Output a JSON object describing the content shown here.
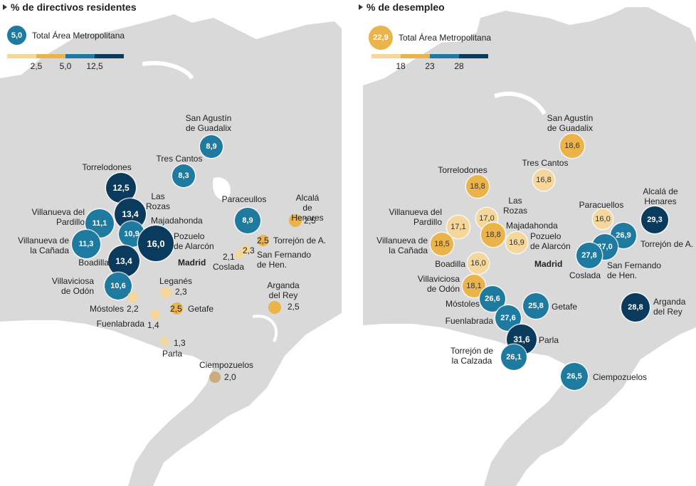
{
  "panels": [
    {
      "title": "% de directivos residentes",
      "total": {
        "value": "5,0",
        "label": "Total Área Metropolitana",
        "color": "#1f7aa0"
      },
      "legend": {
        "colors": [
          "#f5d79c",
          "#eab44b",
          "#1f7aa0",
          "#0a3b5c"
        ],
        "ticks": [
          "2,5",
          "5,0",
          "12,5"
        ]
      },
      "labels": [
        "San Agustín\nde Guadalix",
        "Tres Cantos",
        "Torrelodones",
        "Las\nRozas",
        "Villanueva del\nPardillo",
        "Majadahonda",
        "Villanueva de\nla Cañada",
        "Pozuelo\nde Alarcón",
        "Boadilla",
        "Madrid",
        "Paraceullos",
        "Alcalá de\nHenares",
        "Torrejón de A.",
        "San Fernando\nde Hen.",
        "Coslada",
        "Villaviciosa\nde Odón",
        "Leganés",
        "Arganda\ndel Rey",
        "Móstoles",
        "Getafe",
        "Fuenlabrada",
        "Parla",
        "Ciempozuelos"
      ],
      "inner_values": [
        "8,9",
        "8,3",
        "12,5",
        "13,4",
        "11,1",
        "10,9",
        "11,3",
        "16,0",
        "13,4",
        "8,9",
        "10,6"
      ],
      "outer_values": [
        "2,5",
        "2,5",
        "2,1",
        "2,3",
        "2,3",
        "2,2",
        "2,5",
        "2,5",
        "1,4",
        "1,3",
        "2,0"
      ]
    },
    {
      "title": "% de desempleo",
      "total": {
        "value": "22,9",
        "label": "Total Área Metropolitana",
        "color": "#eab44b"
      },
      "legend": {
        "colors": [
          "#f5d79c",
          "#eab44b",
          "#1f7aa0",
          "#0a3b5c"
        ],
        "ticks": [
          "18",
          "23",
          "28"
        ]
      },
      "labels": [
        "San Agustín\nde Guadalix",
        "Tres Cantos",
        "Torrelodones",
        "Las\nRozas",
        "Villanueva del\nPardillo",
        "Majadahonda",
        "Villanueva de\nla Cañada",
        "Pozuelo\nde Alarcón",
        "Boadilla",
        "Madrid",
        "Paracuellos",
        "Alcalá de\nHenares",
        "Torrejón de A.",
        "San Fernando\nde Hen.",
        "Coslada",
        "Villaviciosa\nde Odón",
        "Móstoles",
        "Getafe",
        "Fuenlabrada",
        "Parla",
        "Torrejón de\nla Calzada",
        "Arganda\ndel Rey",
        "Ciempozuelos"
      ],
      "inner_values": [
        "18,6",
        "16,8",
        "18,8",
        "17,0",
        "17,1",
        "18,8",
        "18,5",
        "16,9",
        "16,0",
        "16,0",
        "29,3",
        "26,9",
        "27,0",
        "27,8",
        "18,1",
        "26,6",
        "25,8",
        "27,6",
        "31,6",
        "26,1",
        "28,8",
        "26,5"
      ]
    }
  ]
}
